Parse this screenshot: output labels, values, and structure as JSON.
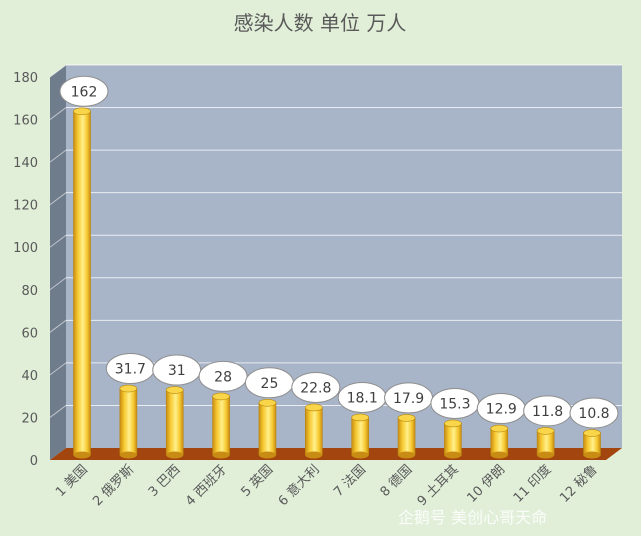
{
  "chart_data": {
    "type": "bar",
    "title": "感染人数 单位 万人",
    "xlabel": "",
    "ylabel": "",
    "categories": [
      "1 美国",
      "2 俄罗斯",
      "3 巴西",
      "4 西班牙",
      "5 英国",
      "6 意大利",
      "7 法国",
      "8 德国",
      "9 土耳其",
      "10 伊朗",
      "11 印度",
      "12 秘鲁"
    ],
    "values": [
      162,
      31.7,
      31,
      28,
      25,
      22.8,
      18.1,
      17.9,
      15.3,
      12.9,
      11.8,
      10.8
    ],
    "value_labels": [
      "162",
      "31.7",
      "31",
      "28",
      "25",
      "22.8",
      "18.1",
      "17.9",
      "15.3",
      "12.9",
      "11.8",
      "10.8"
    ],
    "ylim": [
      0,
      180
    ],
    "yticks": [
      0,
      20,
      40,
      60,
      80,
      100,
      120,
      140,
      160,
      180
    ],
    "grid": true,
    "legend": "none",
    "colors": {
      "background": "#e1efd9",
      "plot_back": "#a8b4c8",
      "plot_side": "#6f7c8c",
      "floor": "#a3450f",
      "bar_light": "#fff08a",
      "bar_mid": "#f6c830",
      "bar_dark": "#c88c14",
      "bar_edge": "#b8860b",
      "text": "#595959"
    }
  },
  "watermark": {
    "text": "企鹅号 美创心哥天命"
  }
}
